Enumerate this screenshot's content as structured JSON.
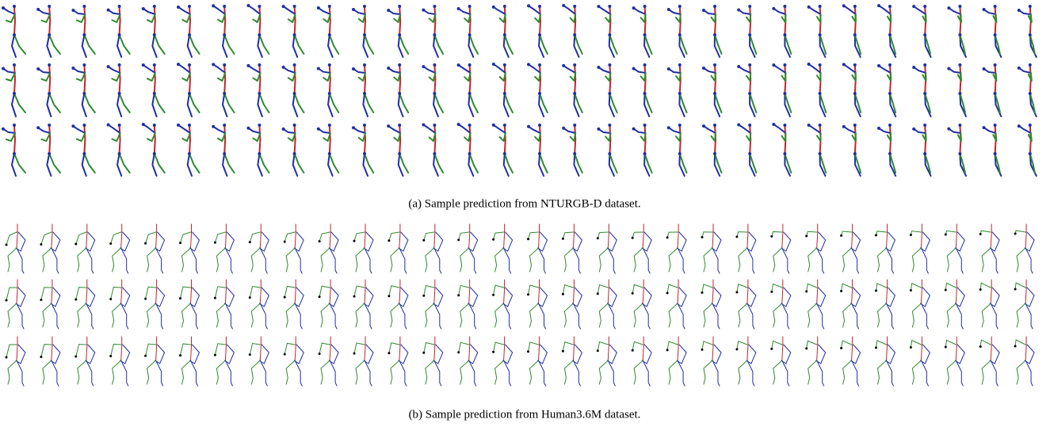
{
  "captions": {
    "a": "(a) Sample prediction from NTURGB-D dataset.",
    "b": "(b) Sample prediction from Human3.6M dataset."
  }
}
